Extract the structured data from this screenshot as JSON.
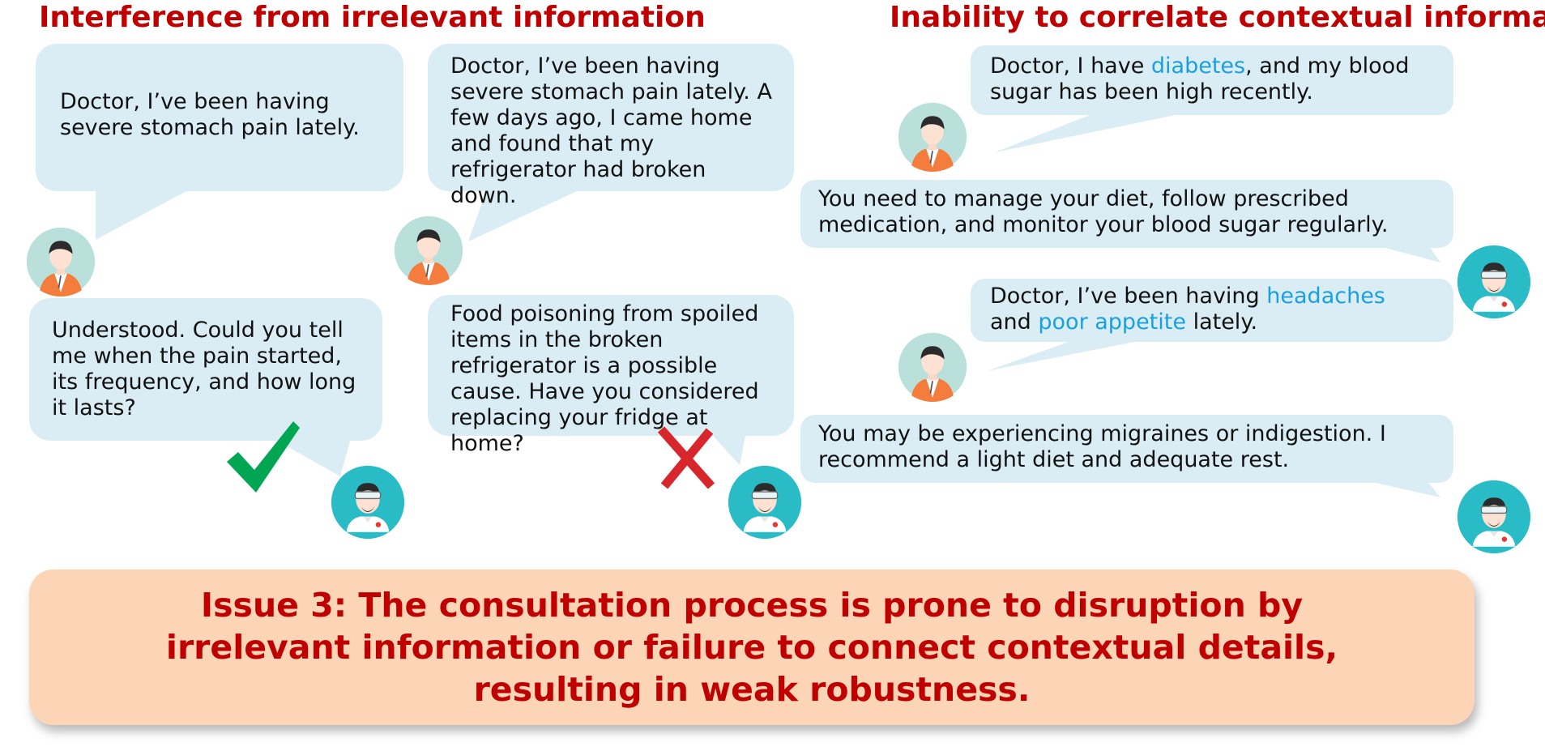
{
  "left_panel": {
    "heading": "Interference from irrelevant information",
    "correct_case": {
      "patient": "Doctor, I’ve been having severe stomach pain lately.",
      "doctor": "Understood. Could you tell me when the pain started, its frequency, and how long it lasts?",
      "verdict_icon": "check-mark-icon",
      "verdict_color": "#00a651"
    },
    "wrong_case": {
      "patient": "Doctor, I’ve been having severe stomach pain lately. A few days ago, I came home and found that my refrigerator had broken down.",
      "doctor": "Food poisoning from spoiled items in the broken refrigerator is a possible cause. Have you considered replacing your fridge at home?",
      "verdict_icon": "cross-mark-icon",
      "verdict_color": "#d7262c"
    }
  },
  "right_panel": {
    "heading": "Inability to correlate contextual information",
    "turn1": {
      "patient": {
        "pre": "Doctor, I have ",
        "kw1": "diabetes",
        "post": ", and my blood sugar has been high recently."
      },
      "doctor": "You need to manage your diet, follow prescribed medication, and monitor your blood sugar regularly."
    },
    "turn2": {
      "patient": {
        "pre": "Doctor, I’ve been having ",
        "kw1": "headaches",
        "mid": " and ",
        "kw2": "poor appetite",
        "post": " lately."
      },
      "doctor": "You may be experiencing migraines or indigestion. I recommend a light diet and adequate rest."
    }
  },
  "issue": {
    "text": "Issue 3: The consultation process is prone to disruption by irrelevant information or failure to connect contextual details, resulting in weak robustness."
  },
  "colors": {
    "heading": "#c00000",
    "bubble": "#daedf4",
    "keyword": "#1aa0e0",
    "issue_background": "#fcd4b6",
    "doctor_avatar": "#29bcc6",
    "patient_avatar": "#b9e0da",
    "patient_shirt": "#f47c3c"
  }
}
